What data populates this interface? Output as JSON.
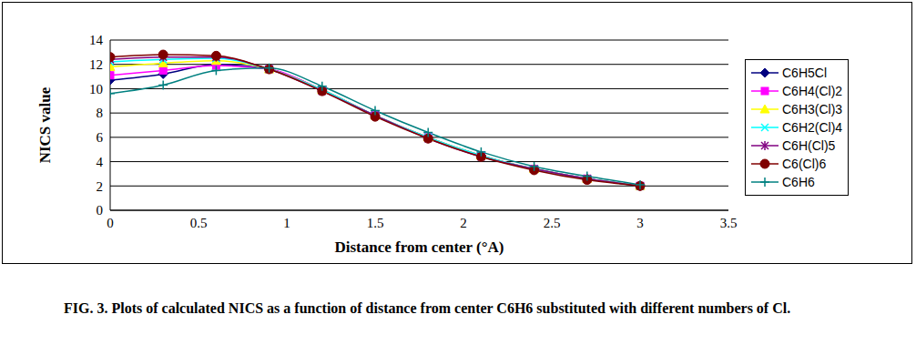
{
  "chart_data": {
    "type": "line",
    "caption": "FIG. 3. Plots of calculated NICS as a function of distance from center C6H6 substituted with different numbers of Cl.",
    "x_label": "Distance from center (°A)",
    "y_label": "NICS value",
    "x": [
      0,
      0.3,
      0.6,
      0.9,
      1.2,
      1.5,
      1.8,
      2.1,
      2.4,
      2.7,
      3.0
    ],
    "xlim": [
      0,
      3.5
    ],
    "xticks": [
      0,
      0.5,
      1,
      1.5,
      2,
      2.5,
      3,
      3.5
    ],
    "ylim": [
      0,
      14
    ],
    "yticks": [
      0,
      2,
      4,
      6,
      8,
      10,
      12,
      14
    ],
    "grid": true,
    "legend": "right",
    "series": [
      {
        "name": "C6H5Cl",
        "color": "#000080",
        "marker": "diamond",
        "values": [
          10.7,
          11.2,
          12.0,
          11.6,
          9.9,
          7.8,
          6.0,
          4.5,
          3.4,
          2.6,
          2.0
        ]
      },
      {
        "name": "C6H4(Cl)2",
        "color": "#ff00ff",
        "marker": "square",
        "values": [
          11.1,
          11.5,
          11.9,
          11.6,
          9.9,
          7.8,
          6.0,
          4.5,
          3.4,
          2.6,
          2.0
        ]
      },
      {
        "name": "C6H3(Cl)3",
        "color": "#ffff00",
        "marker": "triangle",
        "values": [
          11.8,
          12.1,
          12.3,
          11.6,
          9.9,
          7.8,
          6.0,
          4.5,
          3.4,
          2.6,
          2.0
        ]
      },
      {
        "name": "C6H2(Cl)4",
        "color": "#00ffff",
        "marker": "x",
        "values": [
          12.2,
          12.4,
          12.5,
          11.6,
          9.9,
          7.8,
          6.0,
          4.5,
          3.4,
          2.6,
          2.0
        ]
      },
      {
        "name": "C6H(Cl)5",
        "color": "#800080",
        "marker": "star",
        "values": [
          12.4,
          12.6,
          12.6,
          11.6,
          9.8,
          7.8,
          5.9,
          4.4,
          3.4,
          2.6,
          2.0
        ]
      },
      {
        "name": "C6(Cl)6",
        "color": "#800000",
        "marker": "circle",
        "values": [
          12.6,
          12.8,
          12.7,
          11.6,
          9.8,
          7.7,
          5.9,
          4.4,
          3.3,
          2.5,
          2.0
        ]
      },
      {
        "name": "C6H6",
        "color": "#008080",
        "marker": "plus",
        "values": [
          9.6,
          10.3,
          11.5,
          11.7,
          10.2,
          8.2,
          6.4,
          4.8,
          3.6,
          2.8,
          2.1
        ]
      }
    ]
  }
}
